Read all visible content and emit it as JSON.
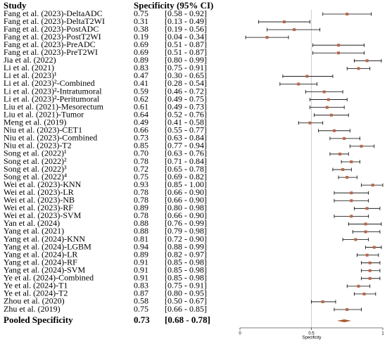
{
  "chart_data": {
    "type": "forest",
    "column_headers": [
      "Study",
      "Specificity (95% CI)"
    ],
    "categories": [
      "Fang et al. (2023)-DeltaADC",
      "Fang et al. (2023)-DeltaT2WI",
      "Fang et al. (2023)-PostADC",
      "Fang et al. (2023)-PostT2WI",
      "Fang et al. (2023)-PreADC",
      "Fang et al. (2023)-PreT2WI",
      "Jia et al. (2022)",
      "Li et al. (2021)",
      "Li et al. (2023)¹",
      "Li et al. (2023)²-Combined",
      "Li et al. (2023)²-Intratumoral",
      "Li et al. (2023)²-Peritumoral",
      "Liu et al. (2021)-Mesorectum",
      "Liu et al. (2021)-Tumor",
      "Meng et al. (2019)",
      "Niu et al. (2023)-CET1",
      "Niu et al. (2023)-Combined",
      "Niu et al. (2023)-T2",
      "Song et al. (2022)¹",
      "Song et al. (2022)²",
      "Song et al. (2022)³",
      "Song et al. (2022)⁴",
      "Wei et al. (2023)-KNN",
      "Wei et al. (2023)-LR",
      "Wei et al. (2023)-NB",
      "Wei et al. (2023)-RF",
      "Wei et al. (2023)-SVM",
      "Yan et al. (2024)",
      "Yang et al. (2021)",
      "Yang et al. (2024)-KNN",
      "Yang et al. (2024)-LGBM",
      "Yang et al. (2024)-LR",
      "Yang et al. (2024)-RF",
      "Yang et al. (2024)-SVM",
      "Ye et al. (2024)-Combined",
      "Ye et al. (2024)-T1",
      "Ye et al. (2024)-T2",
      "Zhou et al. (2020)",
      "Zhu et al. (2019)"
    ],
    "values": [
      0.75,
      0.31,
      0.38,
      0.19,
      0.69,
      0.69,
      0.89,
      0.83,
      0.47,
      0.41,
      0.59,
      0.62,
      0.61,
      0.64,
      0.49,
      0.66,
      0.73,
      0.85,
      0.7,
      0.78,
      0.72,
      0.75,
      0.93,
      0.78,
      0.78,
      0.89,
      0.78,
      0.88,
      0.88,
      0.81,
      0.94,
      0.89,
      0.91,
      0.91,
      0.91,
      0.83,
      0.87,
      0.58,
      0.75
    ],
    "value_labels": [
      "0.75",
      "0.31",
      "0.38",
      "0.19",
      "0.69",
      "0.69",
      "0.89",
      "0.83",
      "0.47",
      "0.41",
      "0.59",
      "0.62",
      "0.61",
      "0.64",
      "0.49",
      "0.66",
      "0.73",
      "0.85",
      "0.70",
      "0.78",
      "0.72",
      "0.75",
      "0.93",
      "0.78",
      "0.78",
      "0.89",
      "0.78",
      "0.88",
      "0.88",
      "0.81",
      "0.94",
      "0.89",
      "0.91",
      "0.91",
      "0.91",
      "0.83",
      "0.87",
      "0.58",
      "0.75"
    ],
    "lower": [
      0.58,
      0.13,
      0.19,
      0.04,
      0.51,
      0.51,
      0.8,
      0.75,
      0.3,
      0.28,
      0.46,
      0.49,
      0.49,
      0.52,
      0.41,
      0.55,
      0.63,
      0.77,
      0.63,
      0.71,
      0.65,
      0.69,
      0.85,
      0.66,
      0.66,
      0.8,
      0.66,
      0.76,
      0.79,
      0.72,
      0.88,
      0.82,
      0.85,
      0.85,
      0.85,
      0.75,
      0.8,
      0.5,
      0.66
    ],
    "upper": [
      0.92,
      0.49,
      0.56,
      0.34,
      0.87,
      0.87,
      0.99,
      0.91,
      0.65,
      0.54,
      0.72,
      0.75,
      0.73,
      0.76,
      0.58,
      0.77,
      0.84,
      0.94,
      0.76,
      0.84,
      0.78,
      0.82,
      1.0,
      0.9,
      0.9,
      0.98,
      0.9,
      0.99,
      0.98,
      0.9,
      0.99,
      0.97,
      0.98,
      0.98,
      0.98,
      0.91,
      0.95,
      0.67,
      0.85
    ],
    "ci_labels": [
      "[0.58 - 0.92]",
      "[0.13 - 0.49]",
      "[0.19 - 0.56]",
      "[0.04 - 0.34]",
      "[0.51 - 0.87]",
      "[0.51 - 0.87]",
      "[0.80 - 0.99]",
      "[0.75 - 0.91]",
      "[0.30 - 0.65]",
      "[0.28 - 0.54]",
      "[0.46 - 0.72]",
      "[0.49 - 0.75]",
      "[0.49 - 0.73]",
      "[0.52 - 0.76]",
      "[0.41 - 0.58]",
      "[0.55 - 0.77]",
      "[0.63 - 0.84]",
      "[0.77 - 0.94]",
      "[0.63 - 0.76]",
      "[0.71 - 0.84]",
      "[0.65 - 0.78]",
      "[0.69 - 0.82]",
      "[0.85 - 1.00]",
      "[0.66 - 0.90]",
      "[0.66 - 0.90]",
      "[0.80 - 0.98]",
      "[0.66 - 0.90]",
      "[0.76 - 0.99]",
      "[0.79 - 0.98]",
      "[0.72 - 0.90]",
      "[0.88 - 0.99]",
      "[0.82 - 0.97]",
      "[0.85 - 0.98]",
      "[0.85 - 0.98]",
      "[0.85 - 0.98]",
      "[0.75 - 0.91]",
      "[0.80 - 0.95]",
      "[0.50 - 0.67]",
      "[0.66 - 0.85]"
    ],
    "pooled": {
      "label": "Pooled Specificity",
      "value": 0.73,
      "value_label": "0.73",
      "lower": 0.68,
      "upper": 0.78,
      "ci_label": "[0.68 - 0.78]"
    },
    "xlim": [
      0,
      1
    ],
    "xticks": [
      0,
      0.5,
      1
    ],
    "xlabel": "Specificity",
    "reference_line": 0.5,
    "point_color": "#b8674a",
    "diamond_color": "#a65a2e"
  }
}
